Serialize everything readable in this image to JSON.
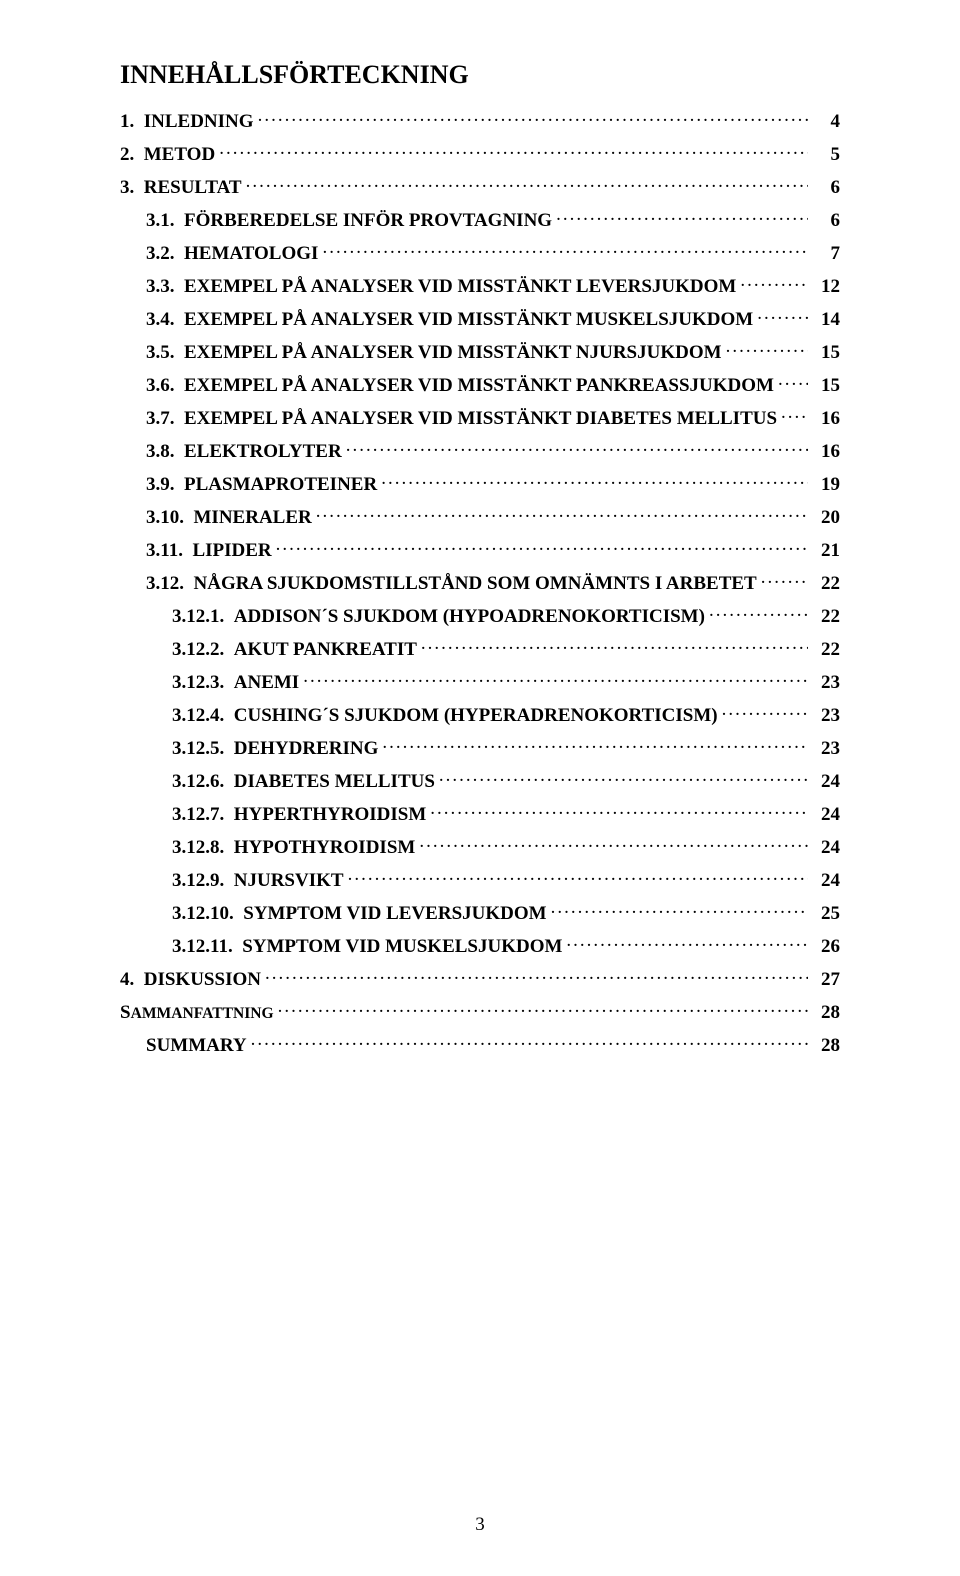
{
  "title": "INNEHÅLLSFÖRTECKNING",
  "page_number": "3",
  "colors": {
    "text": "#000000",
    "background": "#ffffff"
  },
  "typography": {
    "family": "Times New Roman",
    "title_size_pt": 20,
    "line_size_pt": 14,
    "weight": "bold"
  },
  "entries": [
    {
      "level": 1,
      "num": "1.",
      "label": "INLEDNING",
      "page": "4"
    },
    {
      "level": 1,
      "num": "2.",
      "label": "METOD",
      "page": "5"
    },
    {
      "level": 1,
      "num": "3.",
      "label": "RESULTAT",
      "page": "6"
    },
    {
      "level": 2,
      "num": "3.1.",
      "label": "FÖRBEREDELSE INFÖR PROVTAGNING",
      "page": "6"
    },
    {
      "level": 2,
      "num": "3.2.",
      "label": "HEMATOLOGI",
      "page": "7"
    },
    {
      "level": 2,
      "num": "3.3.",
      "label": "EXEMPEL PÅ ANALYSER VID MISSTÄNKT LEVERSJUKDOM",
      "page": "12"
    },
    {
      "level": 2,
      "num": "3.4.",
      "label": "EXEMPEL PÅ ANALYSER VID MISSTÄNKT MUSKELSJUKDOM",
      "page": "14"
    },
    {
      "level": 2,
      "num": "3.5.",
      "label": "EXEMPEL PÅ ANALYSER VID MISSTÄNKT NJURSJUKDOM",
      "page": "15"
    },
    {
      "level": 2,
      "num": "3.6.",
      "label": "EXEMPEL PÅ ANALYSER VID MISSTÄNKT PANKREASSJUKDOM",
      "page": "15"
    },
    {
      "level": 2,
      "num": "3.7.",
      "label": "EXEMPEL PÅ ANALYSER VID MISSTÄNKT DIABETES MELLITUS",
      "page": "16"
    },
    {
      "level": 2,
      "num": "3.8.",
      "label": "ELEKTROLYTER",
      "page": "16"
    },
    {
      "level": 2,
      "num": "3.9.",
      "label": "PLASMAPROTEINER",
      "page": "19"
    },
    {
      "level": 2,
      "num": "3.10.",
      "label": "MINERALER",
      "page": "20"
    },
    {
      "level": 2,
      "num": "3.11.",
      "label": "LIPIDER",
      "page": "21"
    },
    {
      "level": 2,
      "num": "3.12.",
      "label": "NÅGRA SJUKDOMSTILLSTÅND SOM OMNÄMNTS I ARBETET",
      "page": "22"
    },
    {
      "level": 3,
      "num": "3.12.1.",
      "label": "ADDISON´S SJUKDOM (HYPOADRENOKORTICISM)",
      "page": "22"
    },
    {
      "level": 3,
      "num": "3.12.2.",
      "label": "AKUT PANKREATIT",
      "page": "22"
    },
    {
      "level": 3,
      "num": "3.12.3.",
      "label": "ANEMI",
      "page": "23"
    },
    {
      "level": 3,
      "num": "3.12.4.",
      "label": "CUSHING´S SJUKDOM (HYPERADRENOKORTICISM)",
      "page": "23"
    },
    {
      "level": 3,
      "num": "3.12.5.",
      "label": "DEHYDRERING",
      "page": "23"
    },
    {
      "level": 3,
      "num": "3.12.6.",
      "label": "DIABETES MELLITUS",
      "page": "24"
    },
    {
      "level": 3,
      "num": "3.12.7.",
      "label": "HYPERTHYROIDISM",
      "page": "24"
    },
    {
      "level": 3,
      "num": "3.12.8.",
      "label": "HYPOTHYROIDISM",
      "page": "24"
    },
    {
      "level": 3,
      "num": "3.12.9.",
      "label": "NJURSVIKT",
      "page": "24"
    },
    {
      "level": 3,
      "num": "3.12.10.",
      "label": "SYMPTOM VID LEVERSJUKDOM",
      "page": "25"
    },
    {
      "level": 3,
      "num": "3.12.11.",
      "label": "SYMPTOM VID MUSKELSJUKDOM",
      "page": "26"
    },
    {
      "level": 1,
      "num": "4.",
      "label": "DISKUSSION",
      "page": "27"
    },
    {
      "level": 1,
      "num": "",
      "label": "SAMMANFATTNING",
      "page": "28",
      "smallcaps": true
    },
    {
      "level": 2,
      "num": "",
      "label": "SUMMARY",
      "page": "28"
    }
  ]
}
